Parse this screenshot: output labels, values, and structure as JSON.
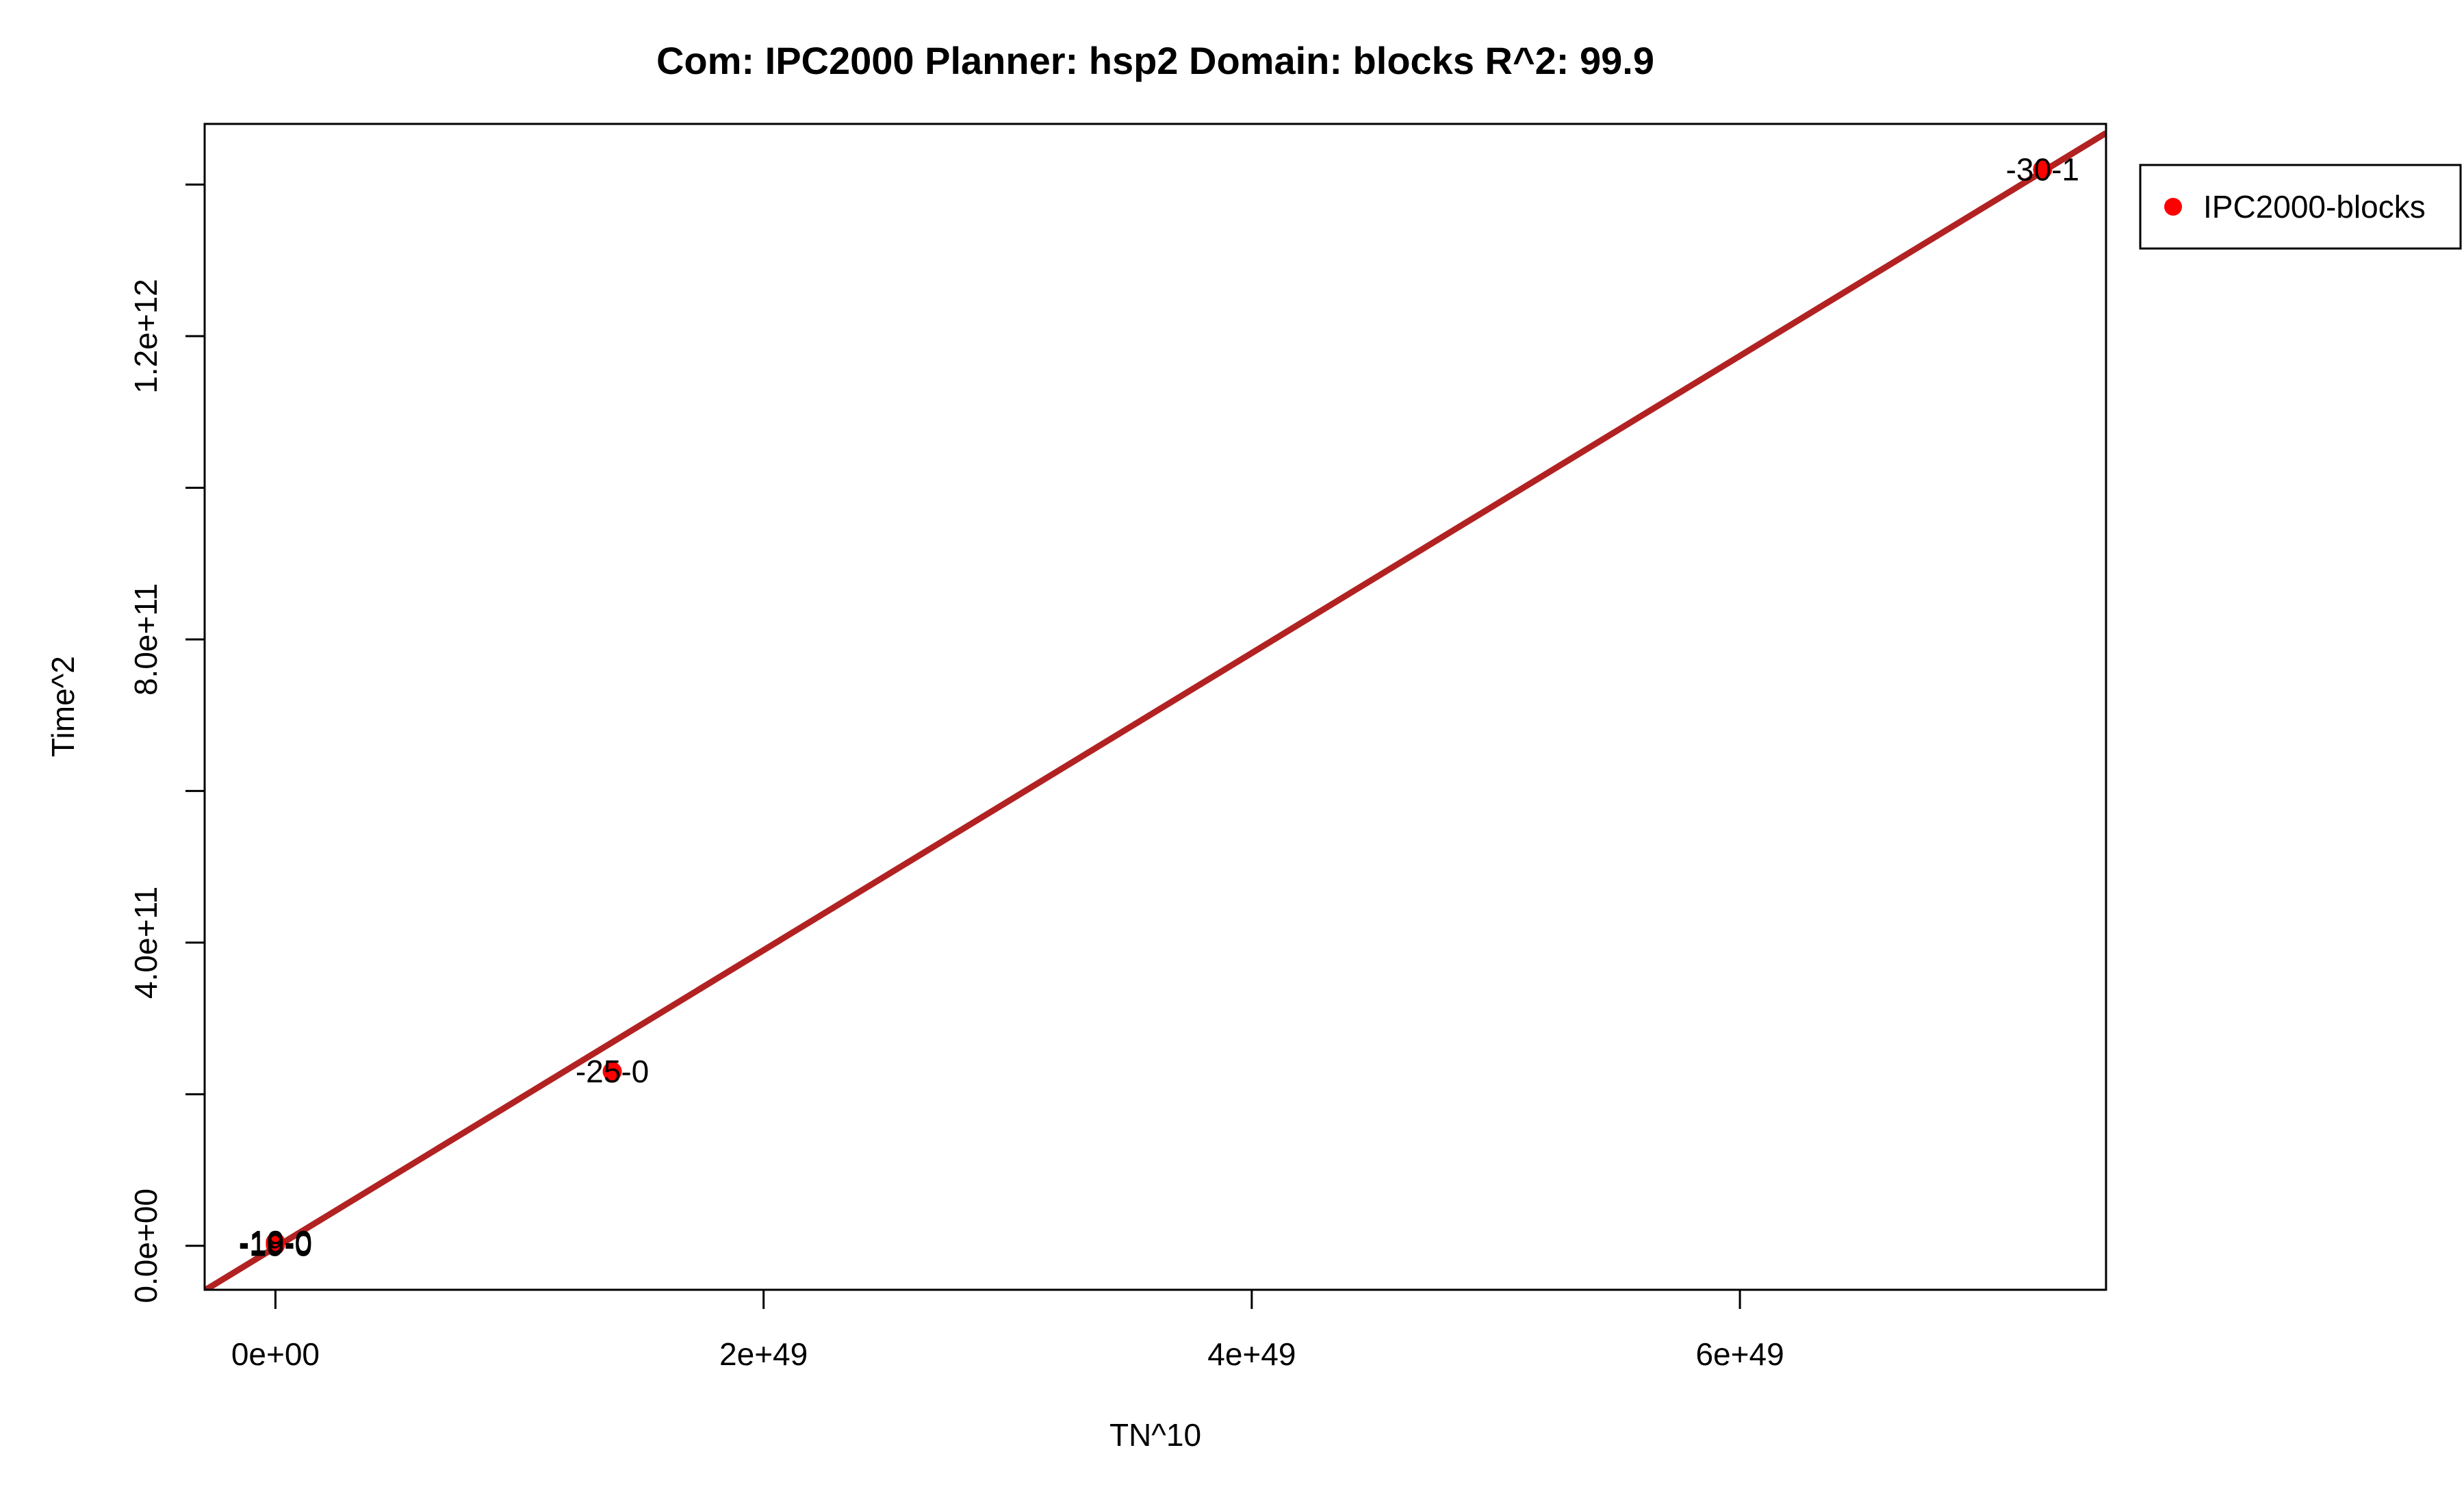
{
  "chart_data": {
    "type": "scatter",
    "title": "Com: IPC2000 Planner: hsp2 Domain: blocks R^2: 99.9",
    "xlabel": "TN^10",
    "ylabel": "Time^2",
    "xlim": [
      -2.9e+48,
      7.5e+49
    ],
    "ylim": [
      -58000000000.0,
      1480000000000.0
    ],
    "x_ticks": [
      {
        "value": 0,
        "label": "0e+00"
      },
      {
        "value": 2e+49,
        "label": "2e+49"
      },
      {
        "value": 4e+49,
        "label": "4e+49"
      },
      {
        "value": 6e+49,
        "label": "6e+49"
      }
    ],
    "y_ticks": [
      {
        "value": 0,
        "label": "0.0e+00"
      },
      {
        "value": 200000000000.0,
        "label": ""
      },
      {
        "value": 400000000000.0,
        "label": "4.0e+11"
      },
      {
        "value": 600000000000.0,
        "label": ""
      },
      {
        "value": 800000000000.0,
        "label": "8.0e+11"
      },
      {
        "value": 1000000000000.0,
        "label": ""
      },
      {
        "value": 1200000000000.0,
        "label": "1.2e+12"
      },
      {
        "value": 1400000000000.0,
        "label": ""
      }
    ],
    "series": [
      {
        "name": "IPC2000-blocks",
        "color": "#ff0000",
        "points": [
          {
            "x": 0,
            "y": 1000000000.0,
            "label": "-19-0"
          },
          {
            "x": 0,
            "y": 3000000000.0,
            "label": "-18-0"
          },
          {
            "x": 0,
            "y": 5000000000.0,
            "label": "-10-0"
          },
          {
            "x": 1.38e+49,
            "y": 230000000000.0,
            "label": "-25-0"
          },
          {
            "x": 7.24e+49,
            "y": 1420000000000.0,
            "label": "-30-1"
          }
        ]
      }
    ],
    "fit_line": {
      "color": "#b22222",
      "intercept": -2000000000.0,
      "slope": 1.96e-38
    },
    "legend": {
      "position": "top-right outside",
      "entries": [
        "IPC2000-blocks"
      ]
    },
    "grid": false
  }
}
